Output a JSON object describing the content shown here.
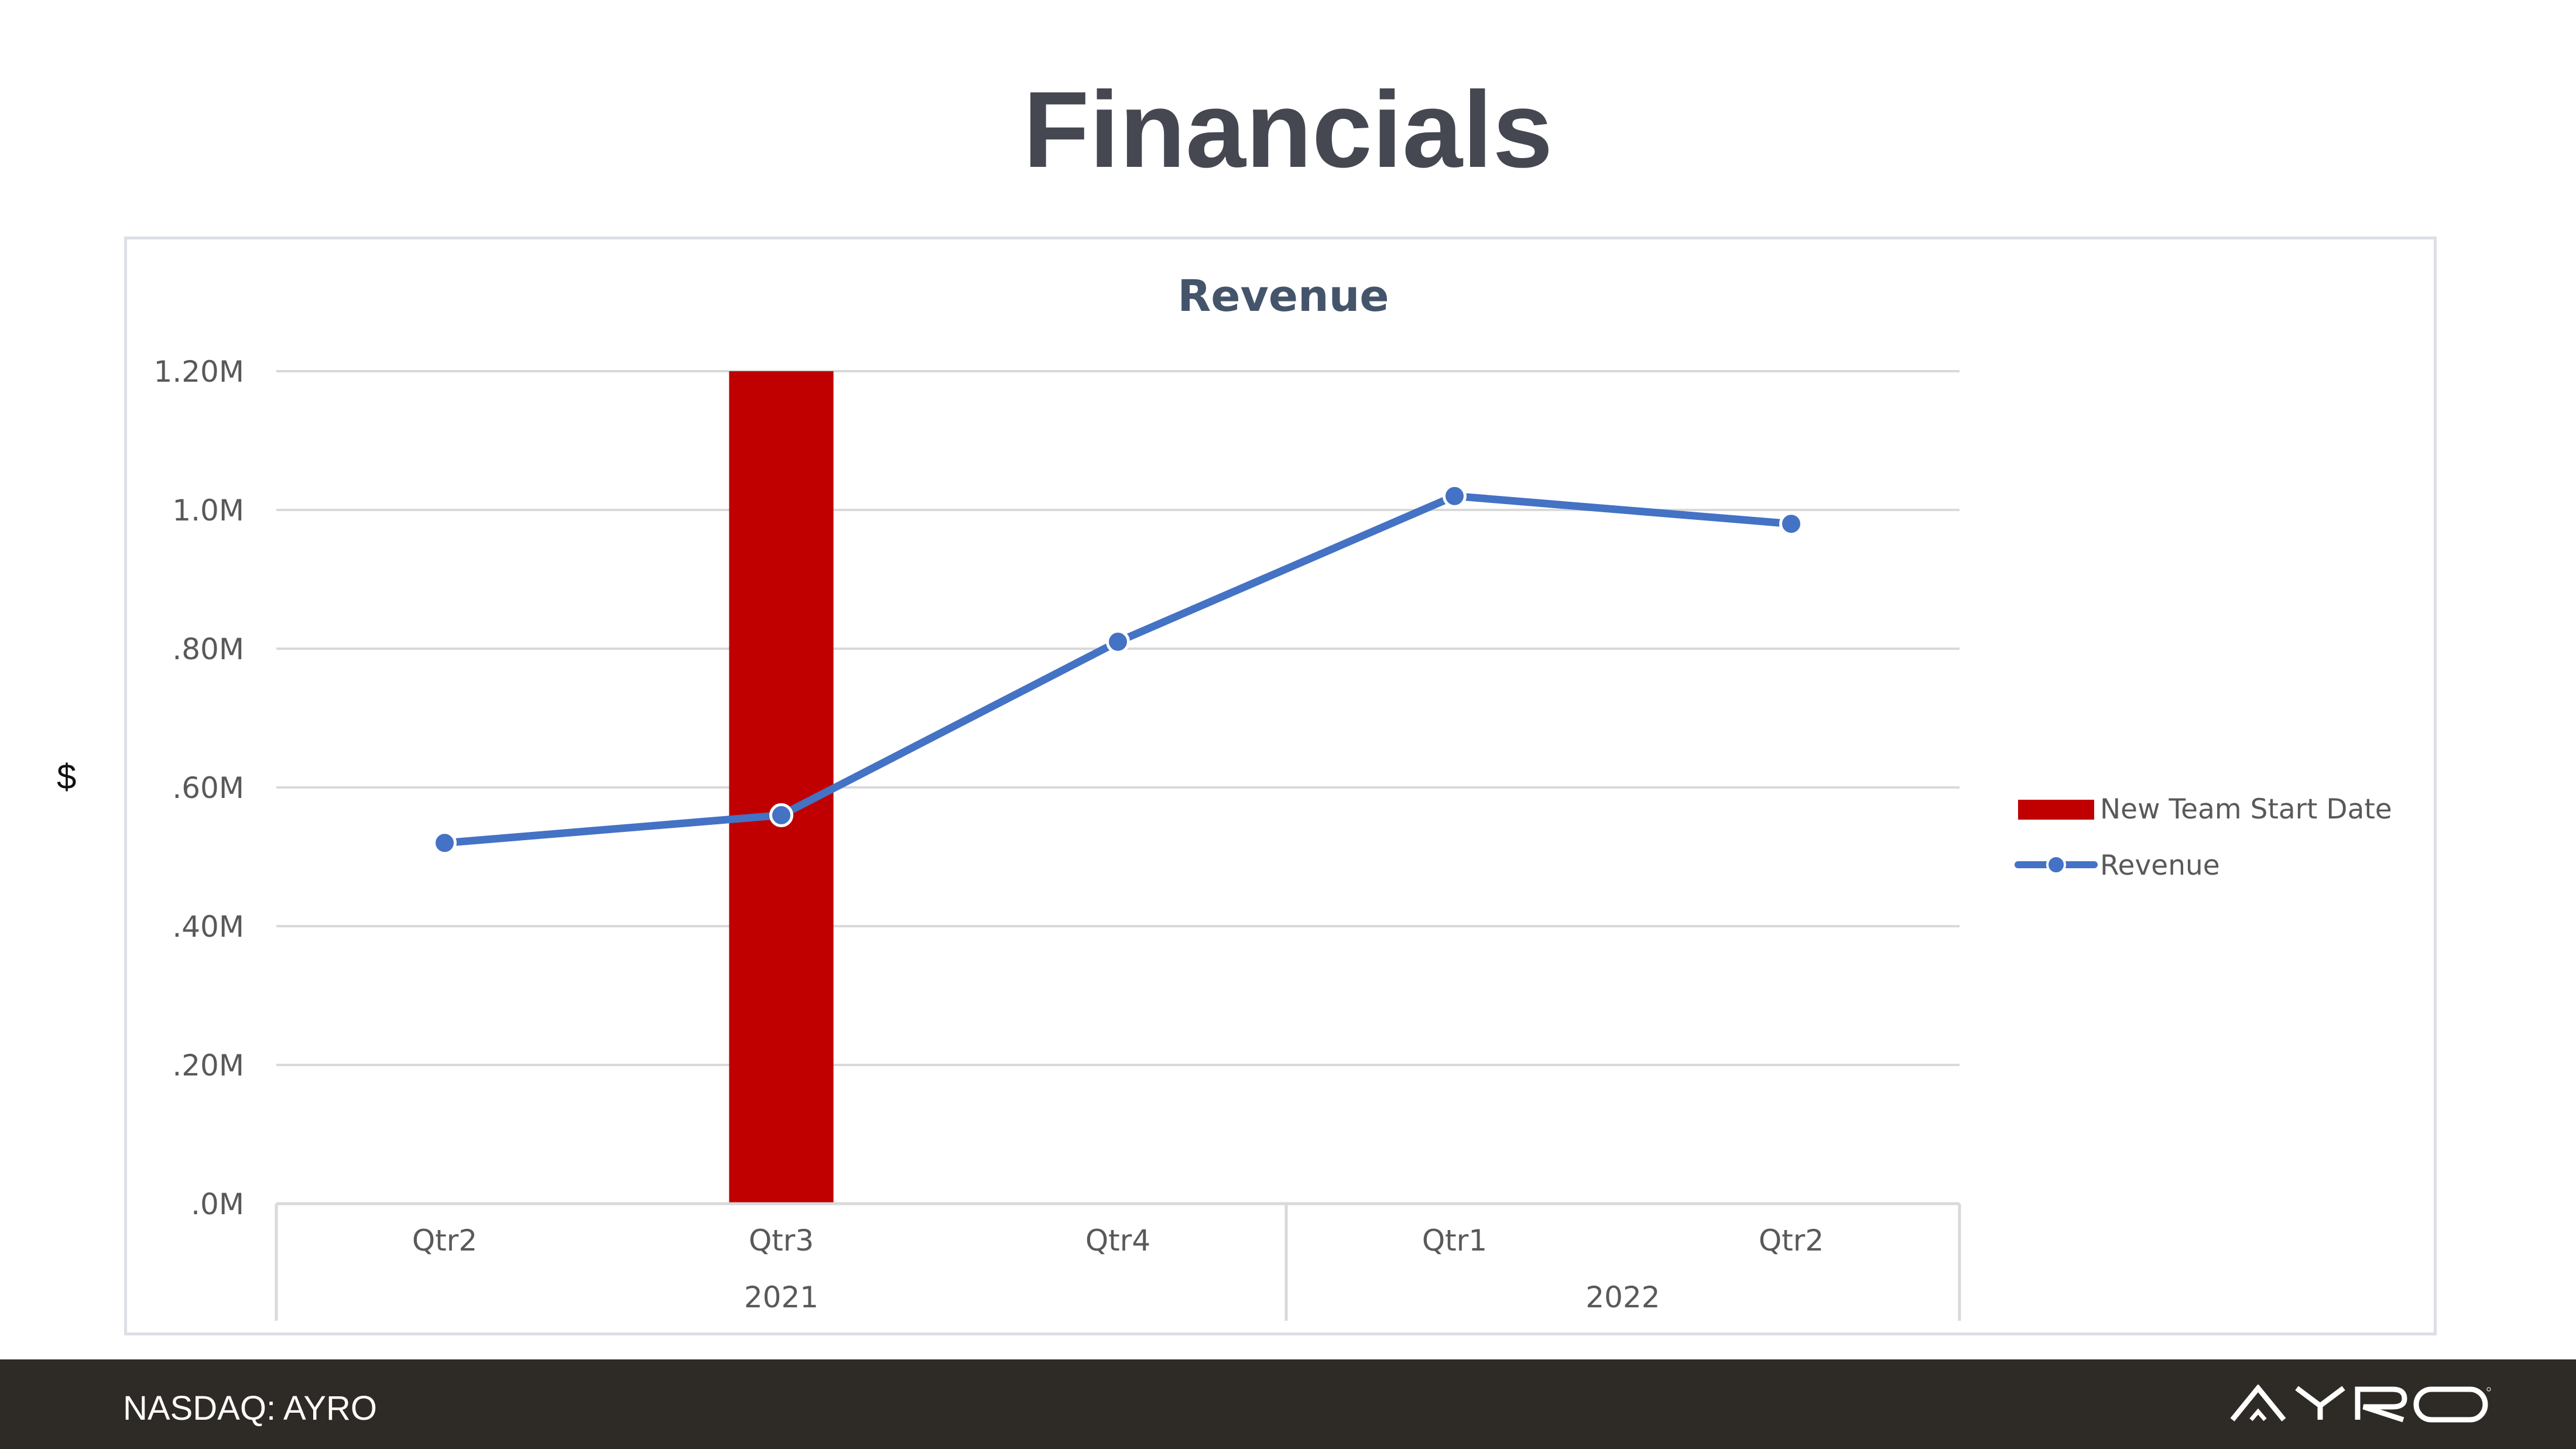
{
  "slide": {
    "title": "Financials",
    "y_unit": "$"
  },
  "footer": {
    "ticker": "NASDAQ: AYRO",
    "logo": "AYRO"
  },
  "colors": {
    "bar": "#c00000",
    "line": "#4472c4",
    "grid": "#d9d9d9",
    "axis_text": "#595959",
    "chart_title": "#44546a",
    "footer_bg": "#2e2a26"
  },
  "chart_data": {
    "type": "line",
    "title": "Revenue",
    "categories": [
      "Qtr2",
      "Qtr3",
      "Qtr4",
      "Qtr1",
      "Qtr2"
    ],
    "category_groups": [
      {
        "label": "2021",
        "span": 3
      },
      {
        "label": "2022",
        "span": 2
      }
    ],
    "y_ticks": [
      0,
      0.2,
      0.4,
      0.6,
      0.8,
      1.0,
      1.2
    ],
    "y_tick_labels": [
      ".0M",
      ".20M",
      ".40M",
      ".60M",
      ".80M",
      "1.0M",
      "1.20M"
    ],
    "ylim": [
      0,
      1.2
    ],
    "y_units": "millions USD",
    "grid": true,
    "legend_position": "right",
    "series": [
      {
        "name": "New Team Start Date",
        "type": "bar",
        "values": [
          null,
          1.2,
          null,
          null,
          null
        ],
        "color": "#c00000"
      },
      {
        "name": "Revenue",
        "type": "line",
        "values": [
          0.52,
          0.56,
          0.81,
          1.02,
          0.98
        ],
        "color": "#4472c4"
      }
    ]
  }
}
